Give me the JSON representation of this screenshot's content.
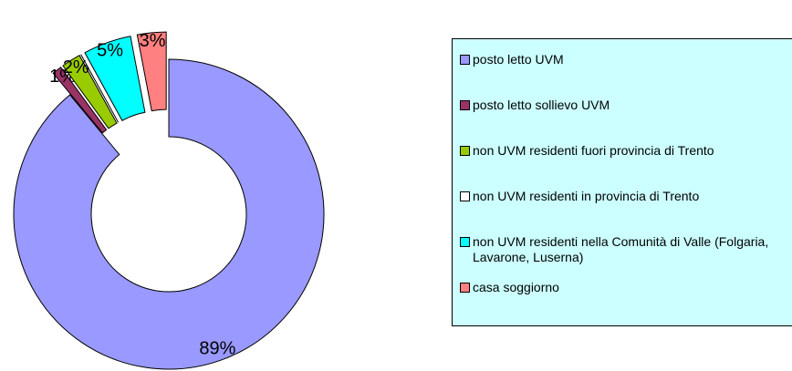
{
  "chart_data": {
    "type": "donut",
    "categories": [
      "posto letto UVM",
      "posto letto sollievo UVM",
      "non UVM residenti fuori provincia di Trento",
      "non UVM residenti in provincia di Trento",
      "non UVM residenti nella Comunità di Valle (Folgaria, Lavarone, Luserna)",
      "casa soggiorno"
    ],
    "values": [
      89,
      1,
      2,
      0,
      5,
      3
    ],
    "value_labels": [
      "89%",
      "1%",
      "2%",
      null,
      "5%",
      "3%"
    ],
    "colors": [
      "#9999ff",
      "#993366",
      "#99cc00",
      "#ffffff",
      "#00ffff",
      "#ff8080"
    ],
    "legend": "right"
  }
}
